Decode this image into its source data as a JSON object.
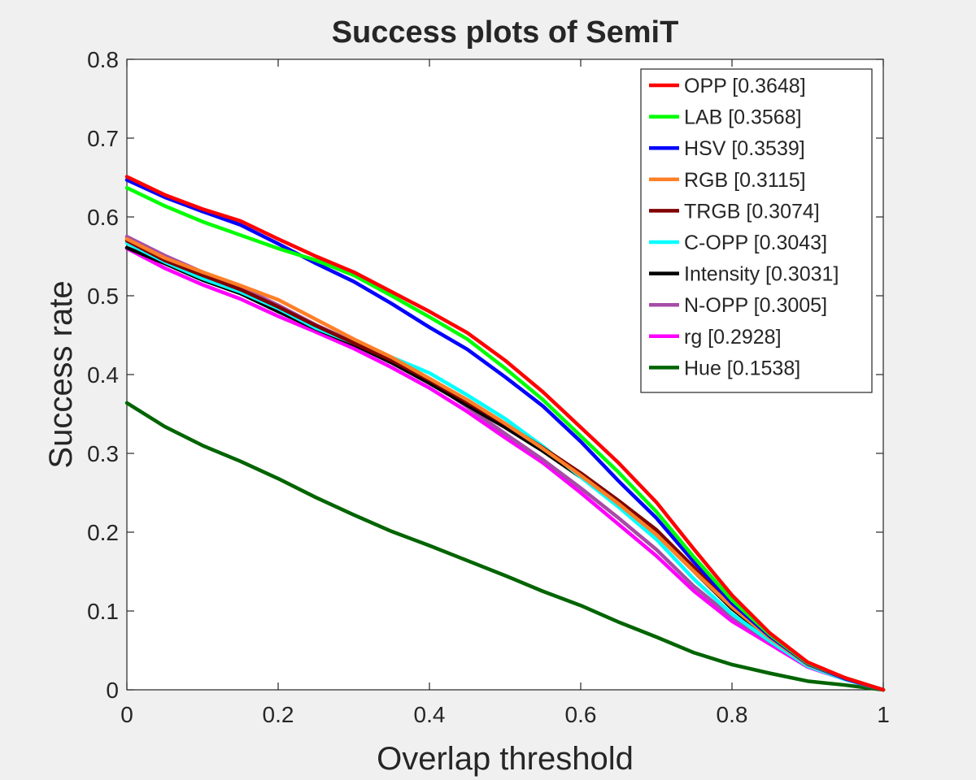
{
  "chart_data": {
    "type": "line",
    "title": "Success plots of SemiT",
    "xlabel": "Overlap threshold",
    "ylabel": "Success rate",
    "xlim": [
      0,
      1
    ],
    "ylim": [
      0,
      0.8
    ],
    "xticks": [
      "0",
      "0.2",
      "0.4",
      "0.6",
      "0.8",
      "1"
    ],
    "xtick_values": [
      0,
      0.2,
      0.4,
      0.6,
      0.8,
      1
    ],
    "yticks": [
      "0",
      "0.1",
      "0.2",
      "0.3",
      "0.4",
      "0.5",
      "0.6",
      "0.7",
      "0.8"
    ],
    "ytick_values": [
      0,
      0.1,
      0.2,
      0.3,
      0.4,
      0.5,
      0.6,
      0.7,
      0.8
    ],
    "grid": false,
    "legend_position": "top-right",
    "x": [
      0,
      0.05,
      0.1,
      0.15,
      0.2,
      0.25,
      0.3,
      0.35,
      0.4,
      0.45,
      0.5,
      0.55,
      0.6,
      0.65,
      0.7,
      0.75,
      0.8,
      0.85,
      0.9,
      0.95,
      1
    ],
    "series": [
      {
        "name": "OPP [0.3648]",
        "color": "#ff0000",
        "values": [
          0.651,
          0.628,
          0.61,
          0.595,
          0.572,
          0.55,
          0.53,
          0.505,
          0.48,
          0.453,
          0.418,
          0.378,
          0.333,
          0.288,
          0.238,
          0.178,
          0.12,
          0.072,
          0.035,
          0.015,
          0
        ]
      },
      {
        "name": "LAB [0.3568]",
        "color": "#00ff00",
        "values": [
          0.637,
          0.614,
          0.594,
          0.577,
          0.56,
          0.545,
          0.526,
          0.5,
          0.473,
          0.445,
          0.408,
          0.368,
          0.322,
          0.276,
          0.226,
          0.168,
          0.114,
          0.07,
          0.034,
          0.015,
          0
        ]
      },
      {
        "name": "HSV [0.3539]",
        "color": "#0000ff",
        "values": [
          0.647,
          0.625,
          0.607,
          0.59,
          0.566,
          0.541,
          0.518,
          0.49,
          0.46,
          0.432,
          0.397,
          0.36,
          0.315,
          0.265,
          0.218,
          0.162,
          0.11,
          0.068,
          0.033,
          0.014,
          0
        ]
      },
      {
        "name": "RGB [0.3115]",
        "color": "#ff7f27",
        "values": [
          0.572,
          0.548,
          0.53,
          0.513,
          0.495,
          0.47,
          0.445,
          0.422,
          0.395,
          0.368,
          0.338,
          0.306,
          0.272,
          0.236,
          0.197,
          0.15,
          0.105,
          0.066,
          0.032,
          0.014,
          0
        ]
      },
      {
        "name": "TRGB [0.3074]",
        "color": "#7f0000",
        "values": [
          0.57,
          0.545,
          0.526,
          0.508,
          0.486,
          0.462,
          0.44,
          0.418,
          0.393,
          0.365,
          0.337,
          0.307,
          0.275,
          0.24,
          0.203,
          0.155,
          0.107,
          0.067,
          0.033,
          0.014,
          0
        ]
      },
      {
        "name": "C-OPP [0.3043]",
        "color": "#00ffff",
        "values": [
          0.567,
          0.543,
          0.522,
          0.505,
          0.484,
          0.459,
          0.44,
          0.422,
          0.402,
          0.374,
          0.344,
          0.309,
          0.27,
          0.232,
          0.191,
          0.14,
          0.096,
          0.062,
          0.03,
          0.013,
          0
        ]
      },
      {
        "name": "Intensity [0.3031]",
        "color": "#000000",
        "values": [
          0.561,
          0.541,
          0.52,
          0.503,
          0.48,
          0.458,
          0.438,
          0.415,
          0.389,
          0.361,
          0.333,
          0.303,
          0.27,
          0.235,
          0.197,
          0.15,
          0.103,
          0.065,
          0.032,
          0.014,
          0
        ]
      },
      {
        "name": "N-OPP [0.3005]",
        "color": "#a64ca6",
        "values": [
          0.575,
          0.551,
          0.53,
          0.511,
          0.488,
          0.463,
          0.441,
          0.416,
          0.392,
          0.359,
          0.325,
          0.292,
          0.256,
          0.218,
          0.178,
          0.131,
          0.092,
          0.061,
          0.031,
          0.014,
          0
        ]
      },
      {
        "name": "rg [0.2928]",
        "color": "#ff00ff",
        "values": [
          0.56,
          0.535,
          0.514,
          0.496,
          0.474,
          0.454,
          0.433,
          0.409,
          0.383,
          0.353,
          0.32,
          0.288,
          0.25,
          0.21,
          0.17,
          0.125,
          0.087,
          0.058,
          0.029,
          0.013,
          0
        ]
      },
      {
        "name": "Hue [0.1538]",
        "color": "#006400",
        "values": [
          0.364,
          0.334,
          0.31,
          0.29,
          0.268,
          0.244,
          0.222,
          0.201,
          0.183,
          0.164,
          0.145,
          0.125,
          0.107,
          0.086,
          0.067,
          0.047,
          0.032,
          0.021,
          0.011,
          0.006,
          0
        ]
      }
    ]
  }
}
